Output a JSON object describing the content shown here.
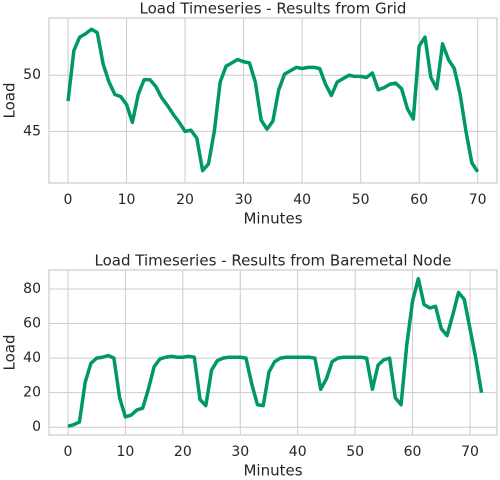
{
  "chart_data": [
    {
      "type": "line",
      "title": "Load Timeseries - Results from Grid",
      "x_label": "Minutes",
      "y_label": "Load",
      "x": [
        0,
        1,
        2,
        3,
        4,
        5,
        6,
        7,
        8,
        9,
        10,
        11,
        12,
        13,
        14,
        15,
        16,
        17,
        18,
        19,
        20,
        21,
        22,
        23,
        24,
        25,
        26,
        27,
        28,
        29,
        30,
        31,
        32,
        33,
        34,
        35,
        36,
        37,
        38,
        39,
        40,
        41,
        42,
        43,
        44,
        45,
        46,
        47,
        48,
        49,
        50,
        51,
        52,
        53,
        54,
        55,
        56,
        57,
        58,
        59,
        60,
        61,
        62,
        63,
        64,
        65,
        66,
        67,
        68,
        69,
        70
      ],
      "values": [
        47.7,
        52.2,
        53.4,
        53.7,
        54.1,
        53.8,
        51,
        49.4,
        48.3,
        48.1,
        47.4,
        45.8,
        48.3,
        49.6,
        49.6,
        49,
        48,
        47.3,
        46.5,
        45.8,
        45,
        45.1,
        44.4,
        41.5,
        42.1,
        45,
        49.4,
        50.8,
        51.1,
        51.4,
        51.2,
        51.1,
        49.4,
        46,
        45.2,
        45.9,
        48.7,
        50.1,
        50.4,
        50.7,
        50.6,
        50.7,
        50.7,
        50.6,
        49.2,
        48.2,
        49.4,
        49.7,
        50,
        49.9,
        49.9,
        49.8,
        50.2,
        48.7,
        48.9,
        49.2,
        49.3,
        48.8,
        47,
        46.1,
        52.6,
        53.4,
        49.8,
        48.8,
        52.8,
        51.4,
        50.6,
        48.3,
        45,
        42.2,
        41.4
      ],
      "color": "#009966",
      "xlim": [
        -3.25,
        73.3
      ],
      "ylim": [
        40.4,
        55.1
      ],
      "xticks": [
        0,
        10,
        20,
        30,
        40,
        50,
        60,
        70
      ],
      "yticks": [
        45,
        50
      ],
      "grid": true
    },
    {
      "type": "line",
      "title": "Load Timeseries - Results from Baremetal Node",
      "x_label": "Minutes",
      "y_label": "Load",
      "x": [
        0,
        1,
        2,
        3,
        4,
        5,
        6,
        7,
        8,
        9,
        10,
        11,
        12,
        13,
        14,
        15,
        16,
        17,
        18,
        19,
        20,
        21,
        22,
        23,
        24,
        25,
        26,
        27,
        28,
        29,
        30,
        31,
        32,
        33,
        34,
        35,
        36,
        37,
        38,
        39,
        40,
        41,
        42,
        43,
        44,
        45,
        46,
        47,
        48,
        49,
        50,
        51,
        52,
        53,
        54,
        55,
        56,
        57,
        58,
        59,
        60,
        61,
        62,
        63,
        64,
        65,
        66,
        67,
        68,
        69,
        70,
        71,
        72
      ],
      "values": [
        0.5,
        1.5,
        3,
        26,
        37,
        40,
        40.5,
        41.5,
        40,
        17,
        6,
        7,
        10,
        11,
        22,
        35,
        39.5,
        40.5,
        41,
        40.5,
        40.5,
        41,
        40.5,
        16,
        12.5,
        33,
        38.5,
        40,
        40.5,
        40.5,
        40.5,
        40,
        25,
        13,
        12.5,
        32,
        38,
        40,
        40.5,
        40.5,
        40.5,
        40.5,
        40.5,
        40,
        22,
        28,
        38,
        40,
        40.5,
        40.5,
        40.5,
        40.5,
        40,
        22,
        36,
        39,
        40,
        17,
        13,
        48,
        73,
        86,
        71,
        69,
        70,
        57,
        53,
        65,
        78,
        74,
        57,
        40,
        20
      ],
      "color": "#009966",
      "xlim": [
        -3.3,
        74.7
      ],
      "ylim": [
        -4.5,
        91
      ],
      "xticks": [
        0,
        10,
        20,
        30,
        40,
        50,
        60,
        70
      ],
      "yticks": [
        0,
        20,
        40,
        60,
        80
      ],
      "grid": true
    }
  ]
}
